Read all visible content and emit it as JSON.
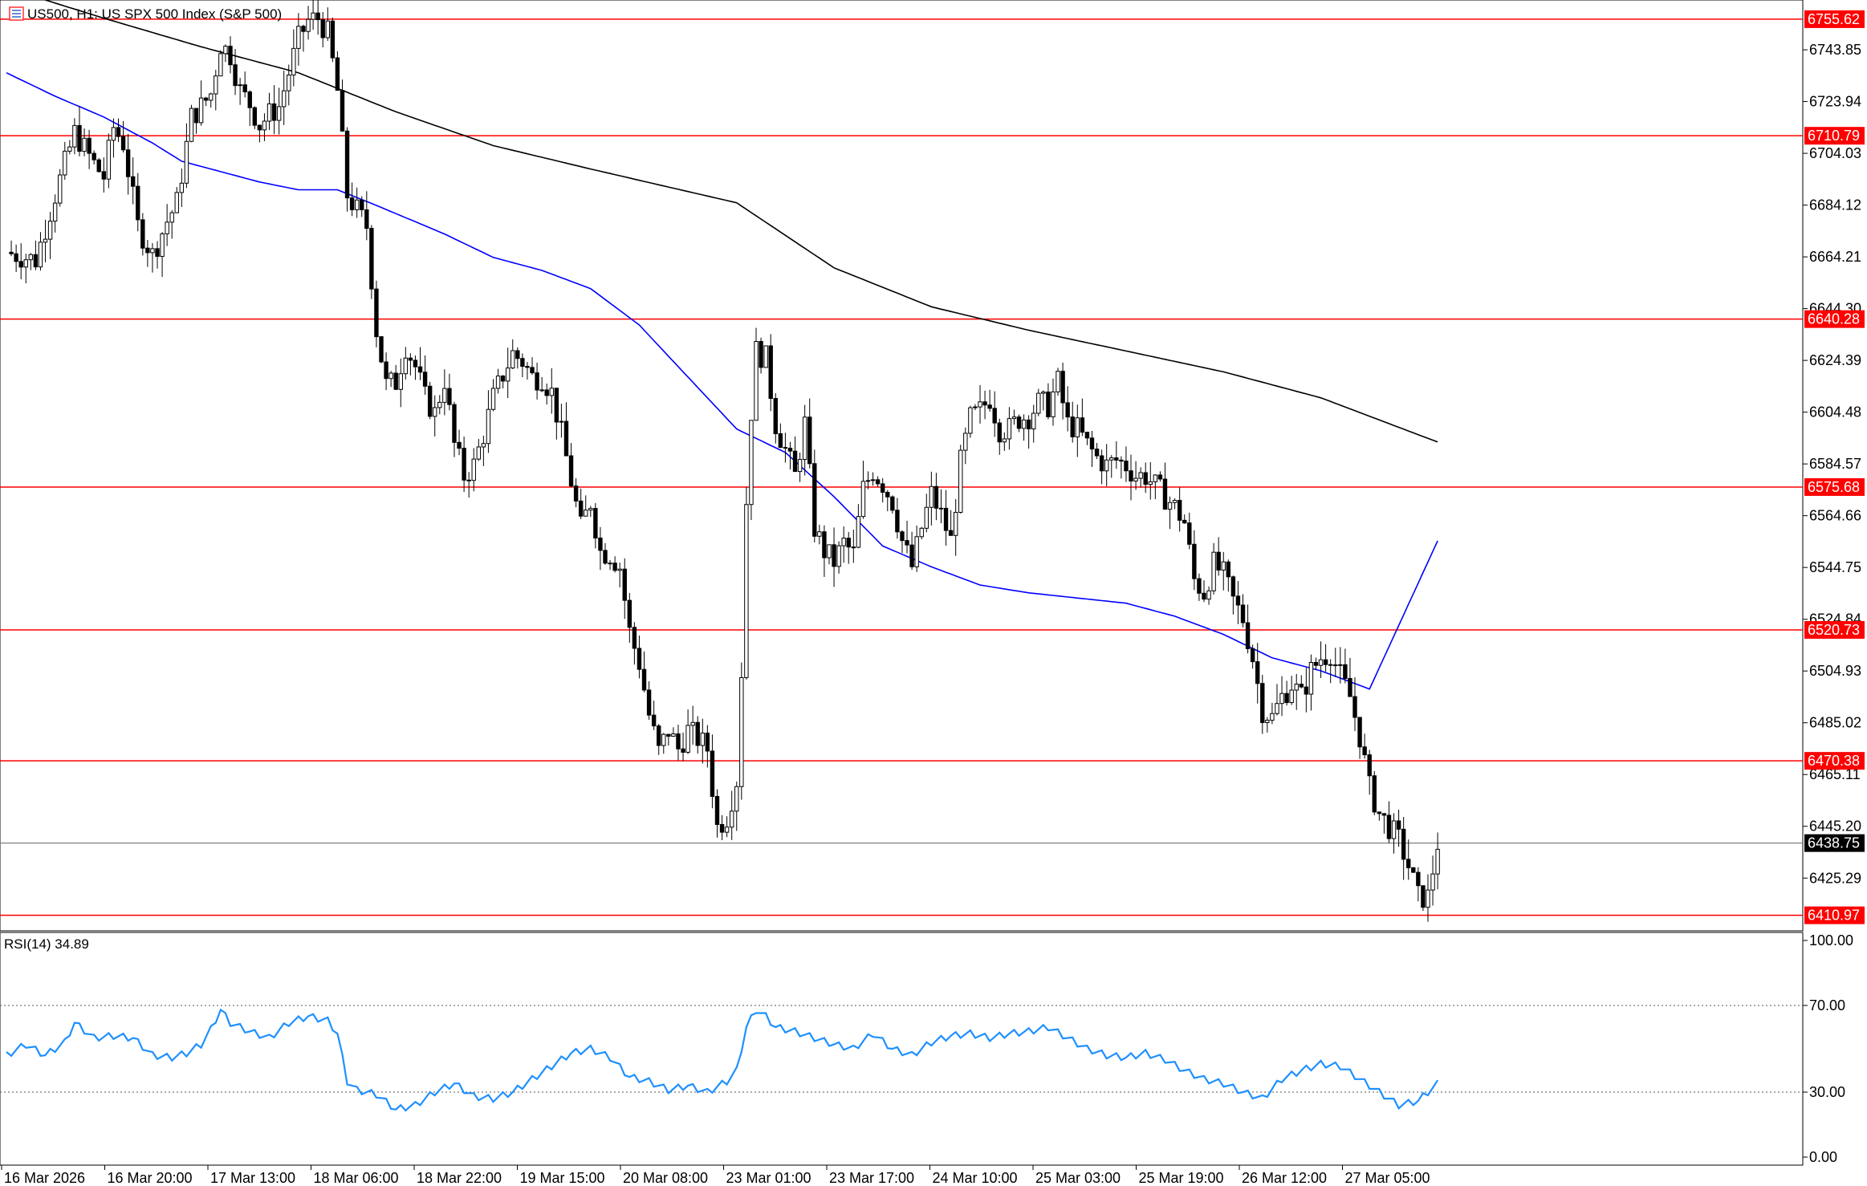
{
  "header": {
    "symbol_text": "US500, H1:  US SPX 500 Index (S&P 500)",
    "icon": "chart-window-icon"
  },
  "rsi_panel": {
    "label": "RSI(14) 34.89"
  },
  "colors": {
    "background": "#ffffff",
    "candle": "#000000",
    "level_line": "#ff0000",
    "level_tag": "#ff0000",
    "price_tag": "#000000",
    "ma_fast": "#0000ff",
    "ma_slow": "#000000",
    "rsi_line": "#1e90ff"
  },
  "chart_data": [
    {
      "type": "candlestick",
      "title": "US500, H1:  US SPX 500 Index (S&P 500)",
      "ylim": [
        6405.0,
        6763.0
      ],
      "y_ticks": [
        "6743.85",
        "6723.94",
        "6704.03",
        "6684.12",
        "6664.21",
        "6644.30",
        "6624.39",
        "6604.48",
        "6584.57",
        "6564.66",
        "6544.75",
        "6524.84",
        "6504.93",
        "6485.02",
        "6465.11",
        "6445.20",
        "6425.29"
      ],
      "x_ticks": [
        "16 Mar 2026",
        "16 Mar 20:00",
        "17 Mar 13:00",
        "18 Mar 06:00",
        "18 Mar 22:00",
        "19 Mar 15:00",
        "20 Mar 08:00",
        "23 Mar 01:00",
        "23 Mar 17:00",
        "24 Mar 10:00",
        "25 Mar 03:00",
        "25 Mar 19:00",
        "26 Mar 12:00",
        "27 Mar 05:00"
      ],
      "horizontal_levels": [
        "6755.62",
        "6710.79",
        "6640.28",
        "6575.68",
        "6520.73",
        "6470.38",
        "6410.97"
      ],
      "current_price": "6438.75",
      "close_path": [
        [
          0,
          6666
        ],
        [
          6,
          6663
        ],
        [
          10,
          6688
        ],
        [
          14,
          6712
        ],
        [
          18,
          6700
        ],
        [
          20,
          6695
        ],
        [
          22,
          6714
        ],
        [
          24,
          6708
        ],
        [
          27,
          6676
        ],
        [
          30,
          6665
        ],
        [
          33,
          6678
        ],
        [
          35,
          6685
        ],
        [
          38,
          6718
        ],
        [
          40,
          6722
        ],
        [
          42,
          6727
        ],
        [
          44,
          6746
        ],
        [
          46,
          6742
        ],
        [
          48,
          6728
        ],
        [
          50,
          6723
        ],
        [
          52,
          6715
        ],
        [
          54,
          6719
        ],
        [
          56,
          6722
        ],
        [
          58,
          6735
        ],
        [
          60,
          6748
        ],
        [
          62,
          6755
        ],
        [
          64,
          6756
        ],
        [
          66,
          6750
        ],
        [
          68,
          6728
        ],
        [
          70,
          6688
        ],
        [
          72,
          6682
        ],
        [
          74,
          6676
        ],
        [
          76,
          6636
        ],
        [
          78,
          6615
        ],
        [
          80,
          6616
        ],
        [
          82,
          6630
        ],
        [
          84,
          6622
        ],
        [
          86,
          6610
        ],
        [
          88,
          6604
        ],
        [
          90,
          6617
        ],
        [
          92,
          6592
        ],
        [
          94,
          6580
        ],
        [
          96,
          6584
        ],
        [
          98,
          6596
        ],
        [
          100,
          6610
        ],
        [
          102,
          6619
        ],
        [
          104,
          6627
        ],
        [
          106,
          6624
        ],
        [
          108,
          6618
        ],
        [
          110,
          6618
        ],
        [
          112,
          6612
        ],
        [
          114,
          6596
        ],
        [
          116,
          6578
        ],
        [
          118,
          6560
        ],
        [
          120,
          6570
        ],
        [
          122,
          6551
        ],
        [
          124,
          6550
        ],
        [
          126,
          6545
        ],
        [
          128,
          6520
        ],
        [
          130,
          6508
        ],
        [
          132,
          6488
        ],
        [
          134,
          6474
        ],
        [
          136,
          6482
        ],
        [
          138,
          6475
        ],
        [
          140,
          6482
        ],
        [
          142,
          6479
        ],
        [
          144,
          6475
        ],
        [
          146,
          6445
        ],
        [
          148,
          6449
        ],
        [
          150,
          6463
        ],
        [
          151,
          6505
        ],
        [
          152,
          6570
        ],
        [
          153,
          6605
        ],
        [
          154,
          6628
        ],
        [
          156,
          6625
        ],
        [
          158,
          6600
        ],
        [
          160,
          6590
        ],
        [
          162,
          6580
        ],
        [
          164,
          6600
        ],
        [
          166,
          6560
        ],
        [
          168,
          6551
        ],
        [
          170,
          6547
        ],
        [
          172,
          6554
        ],
        [
          174,
          6550
        ],
        [
          176,
          6575
        ],
        [
          178,
          6582
        ],
        [
          180,
          6577
        ],
        [
          182,
          6570
        ],
        [
          184,
          6555
        ],
        [
          186,
          6545
        ],
        [
          188,
          6560
        ],
        [
          190,
          6573
        ],
        [
          192,
          6565
        ],
        [
          194,
          6555
        ],
        [
          196,
          6585
        ],
        [
          198,
          6602
        ],
        [
          200,
          6605
        ],
        [
          202,
          6610
        ],
        [
          204,
          6598
        ],
        [
          206,
          6598
        ],
        [
          208,
          6602
        ],
        [
          210,
          6603
        ],
        [
          212,
          6608
        ],
        [
          214,
          6607
        ],
        [
          216,
          6616
        ],
        [
          218,
          6600
        ],
        [
          220,
          6598
        ],
        [
          222,
          6592
        ],
        [
          224,
          6587
        ],
        [
          226,
          6584
        ],
        [
          228,
          6586
        ],
        [
          230,
          6584
        ],
        [
          232,
          6580
        ],
        [
          234,
          6580
        ],
        [
          236,
          6576
        ],
        [
          238,
          6572
        ],
        [
          240,
          6568
        ],
        [
          242,
          6562
        ],
        [
          244,
          6540
        ],
        [
          246,
          6535
        ],
        [
          248,
          6546
        ],
        [
          250,
          6542
        ],
        [
          252,
          6532
        ],
        [
          254,
          6525
        ],
        [
          256,
          6510
        ],
        [
          258,
          6490
        ],
        [
          260,
          6487
        ],
        [
          262,
          6495
        ],
        [
          264,
          6500
        ],
        [
          266,
          6495
        ],
        [
          268,
          6505
        ],
        [
          270,
          6510
        ],
        [
          272,
          6512
        ],
        [
          274,
          6503
        ],
        [
          276,
          6495
        ],
        [
          278,
          6480
        ],
        [
          280,
          6460
        ],
        [
          282,
          6450
        ],
        [
          284,
          6445
        ],
        [
          286,
          6440
        ],
        [
          288,
          6430
        ],
        [
          290,
          6418
        ],
        [
          292,
          6418
        ],
        [
          294,
          6438.75
        ]
      ],
      "ma_fast_path": [
        [
          0,
          6735
        ],
        [
          10,
          6726
        ],
        [
          20,
          6718
        ],
        [
          30,
          6708
        ],
        [
          36,
          6701
        ],
        [
          44,
          6697
        ],
        [
          52,
          6693
        ],
        [
          60,
          6690
        ],
        [
          68,
          6690
        ],
        [
          76,
          6684
        ],
        [
          90,
          6673
        ],
        [
          100,
          6664
        ],
        [
          110,
          6659
        ],
        [
          120,
          6652
        ],
        [
          130,
          6638
        ],
        [
          140,
          6618
        ],
        [
          150,
          6598
        ],
        [
          160,
          6589
        ],
        [
          170,
          6572
        ],
        [
          180,
          6553
        ],
        [
          190,
          6545
        ],
        [
          200,
          6538
        ],
        [
          210,
          6535
        ],
        [
          220,
          6533
        ],
        [
          230,
          6531
        ],
        [
          240,
          6526
        ],
        [
          250,
          6519
        ],
        [
          260,
          6510
        ],
        [
          270,
          6505
        ],
        [
          280,
          6498
        ],
        [
          294,
          6555
        ]
      ],
      "ma_slow_path": [
        [
          8,
          6763
        ],
        [
          20,
          6756
        ],
        [
          40,
          6745
        ],
        [
          60,
          6735
        ],
        [
          80,
          6720
        ],
        [
          100,
          6707
        ],
        [
          120,
          6698
        ],
        [
          150,
          6685
        ],
        [
          170,
          6660
        ],
        [
          190,
          6645
        ],
        [
          210,
          6636
        ],
        [
          230,
          6628
        ],
        [
          250,
          6620
        ],
        [
          270,
          6610
        ],
        [
          294,
          6593
        ]
      ]
    },
    {
      "type": "line",
      "title": "RSI(14) 34.89",
      "ylim": [
        0,
        100
      ],
      "y_ticks": [
        "100.00",
        "70.00",
        "30.00",
        "0.00"
      ],
      "reference_levels": [
        70,
        30
      ],
      "series": [
        {
          "values": [
            [
              0,
              47
            ],
            [
              4,
              52
            ],
            [
              8,
              47
            ],
            [
              12,
              53
            ],
            [
              14,
              62
            ],
            [
              18,
              55
            ],
            [
              22,
              56
            ],
            [
              26,
              55
            ],
            [
              30,
              47
            ],
            [
              34,
              46
            ],
            [
              37,
              48
            ],
            [
              40,
              52
            ],
            [
              42,
              59
            ],
            [
              44,
              68
            ],
            [
              46,
              62
            ],
            [
              50,
              58
            ],
            [
              54,
              55
            ],
            [
              58,
              62
            ],
            [
              62,
              65
            ],
            [
              66,
              63
            ],
            [
              68,
              57
            ],
            [
              70,
              35
            ],
            [
              72,
              31
            ],
            [
              76,
              29
            ],
            [
              80,
              22
            ],
            [
              84,
              24
            ],
            [
              88,
              30
            ],
            [
              92,
              34
            ],
            [
              96,
              28
            ],
            [
              100,
              27
            ],
            [
              104,
              30
            ],
            [
              108,
              36
            ],
            [
              112,
              42
            ],
            [
              116,
              48
            ],
            [
              120,
              50
            ],
            [
              124,
              46
            ],
            [
              128,
              37
            ],
            [
              132,
              35
            ],
            [
              136,
              31
            ],
            [
              140,
              33
            ],
            [
              144,
              30
            ],
            [
              148,
              35
            ],
            [
              150,
              40
            ],
            [
              152,
              60
            ],
            [
              154,
              68
            ],
            [
              156,
              65
            ],
            [
              158,
              60
            ],
            [
              162,
              58
            ],
            [
              166,
              55
            ],
            [
              170,
              52
            ],
            [
              174,
              50
            ],
            [
              178,
              57
            ],
            [
              182,
              50
            ],
            [
              186,
              47
            ],
            [
              190,
              53
            ],
            [
              194,
              56
            ],
            [
              198,
              57
            ],
            [
              202,
              55
            ],
            [
              206,
              57
            ],
            [
              210,
              58
            ],
            [
              214,
              60
            ],
            [
              218,
              55
            ],
            [
              222,
              50
            ],
            [
              226,
              47
            ],
            [
              230,
              46
            ],
            [
              234,
              48
            ],
            [
              238,
              45
            ],
            [
              242,
              40
            ],
            [
              246,
              36
            ],
            [
              250,
              34
            ],
            [
              254,
              30
            ],
            [
              258,
              27
            ],
            [
              262,
              36
            ],
            [
              266,
              40
            ],
            [
              270,
              43
            ],
            [
              274,
              42
            ],
            [
              278,
              36
            ],
            [
              282,
              30
            ],
            [
              286,
              24
            ],
            [
              290,
              26
            ],
            [
              294,
              34
            ]
          ]
        }
      ]
    }
  ]
}
